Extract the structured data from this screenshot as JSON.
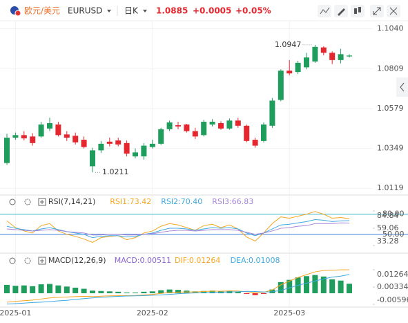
{
  "header": {
    "name": "欧元/美元",
    "symbol": "EURUSD",
    "period": "日K",
    "price": 1.0885,
    "change": "+0.0005",
    "change_pct": "+0.05%"
  },
  "chart_data": [
    {
      "type": "candlestick",
      "up_color": "#1f9d5c",
      "down_color": "#e5262e",
      "grid": true,
      "categories": [
        null,
        null,
        null,
        null,
        null,
        null,
        null,
        null,
        null,
        null,
        null,
        null,
        null,
        null,
        null,
        null,
        null,
        null,
        null,
        null,
        null,
        null,
        null,
        null,
        null,
        null,
        null,
        null,
        null,
        null,
        null,
        null,
        null,
        null,
        null,
        null,
        null,
        null,
        null,
        null,
        null
      ],
      "open": [
        1.0265,
        1.0411,
        1.0426,
        1.0418,
        1.0418,
        1.0464,
        1.0487,
        1.043,
        1.0422,
        1.0399,
        1.0246,
        1.0338,
        1.0388,
        1.0395,
        1.038,
        1.0303,
        1.0303,
        1.0357,
        1.0376,
        1.046,
        1.0483,
        1.0487,
        1.0449,
        1.0426,
        1.0487,
        1.0495,
        1.0464,
        1.051,
        1.048,
        1.0399,
        1.0392,
        1.048,
        1.0629,
        1.0798,
        1.079,
        1.0817,
        1.0851,
        1.0932,
        1.0901,
        1.0859,
        1.088
      ],
      "high": [
        1.0434,
        1.0441,
        1.0449,
        1.0437,
        1.0503,
        1.0526,
        1.0503,
        1.0449,
        1.0441,
        1.0418,
        1.0353,
        1.0392,
        1.0411,
        1.0411,
        1.0395,
        1.0349,
        1.038,
        1.0399,
        1.0468,
        1.051,
        1.0503,
        1.0491,
        1.0468,
        1.0514,
        1.0518,
        1.0506,
        1.0522,
        1.0526,
        1.0487,
        1.0411,
        1.0499,
        1.064,
        1.0805,
        1.0859,
        1.0855,
        1.0901,
        1.0947,
        1.0939,
        1.0909,
        1.0924,
        1.0893
      ],
      "low": [
        1.0254,
        1.0399,
        1.0395,
        1.0365,
        1.0411,
        1.0449,
        1.0418,
        1.0392,
        1.0372,
        1.0349,
        1.0211,
        1.0323,
        1.0361,
        1.0361,
        1.0303,
        1.0292,
        1.0284,
        1.0349,
        1.0369,
        1.0449,
        1.046,
        1.0441,
        1.0403,
        1.0418,
        1.0476,
        1.0457,
        1.0457,
        1.0468,
        1.0384,
        1.0353,
        1.0384,
        1.0468,
        1.0621,
        1.0771,
        1.0778,
        1.0805,
        1.0843,
        1.0886,
        1.0836,
        1.084,
        1.0874
      ],
      "close": [
        1.0411,
        1.0426,
        1.0407,
        1.038,
        1.0487,
        1.0495,
        1.0426,
        1.0411,
        1.0384,
        1.0357,
        1.0338,
        1.0376,
        1.0376,
        1.0372,
        1.0319,
        1.0326,
        1.0365,
        1.0376,
        1.046,
        1.0499,
        1.0476,
        1.0449,
        1.0418,
        1.0503,
        1.0503,
        1.0464,
        1.051,
        1.048,
        1.0392,
        1.0365,
        1.0487,
        1.0625,
        1.0798,
        1.0782,
        1.0843,
        1.0874,
        1.0935,
        1.0901,
        1.0859,
        1.0893,
        1.0885
      ],
      "ylim": [
        1.0104,
        1.1062
      ],
      "yticks": [
        {
          "value": 1.104,
          "label": "1.1040"
        },
        1.0809,
        1.0579,
        1.0349,
        1.0119
      ],
      "max_label": 1.0947,
      "min_label": 1.0211,
      "xticks": [
        {
          "value": 1,
          "label": "2025-01"
        },
        {
          "value": 17,
          "label": "2025-02"
        },
        {
          "value": 33,
          "label": "2025-03"
        }
      ]
    },
    {
      "type": "line",
      "title": "RSI(7,14,21)",
      "series": [
        {
          "name": "RSI1:73.42",
          "color": "#f5a623",
          "values": [
            70,
            60,
            55,
            52,
            63,
            66,
            55,
            50,
            47,
            43,
            38,
            45,
            47,
            48,
            42,
            45,
            52,
            55,
            62,
            66,
            64,
            60,
            56,
            63,
            65,
            60,
            64,
            58,
            46,
            40,
            52,
            66,
            76,
            74,
            77,
            80,
            84,
            80,
            74,
            75,
            73.42
          ]
        },
        {
          "name": "RSI2:70.40",
          "color": "#3fa9e0",
          "values": [
            62,
            59,
            57,
            55,
            58,
            60,
            57,
            54,
            52,
            50,
            45,
            47,
            48,
            48,
            46,
            47,
            50,
            52,
            56,
            59,
            59,
            58,
            56,
            58,
            60,
            59,
            60,
            58,
            52,
            48,
            52,
            58,
            64,
            65,
            67,
            69,
            72,
            71,
            69,
            70,
            70.4
          ]
        },
        {
          "name": "RSI3:66.83",
          "color": "#a585d9",
          "values": [
            58,
            57,
            56,
            55,
            56,
            57,
            56,
            54,
            53,
            52,
            49,
            49,
            50,
            50,
            49,
            49,
            50,
            51,
            53,
            55,
            56,
            56,
            55,
            56,
            57,
            57,
            57,
            56,
            53,
            50,
            52,
            55,
            59,
            60,
            62,
            63,
            66,
            66,
            66,
            67,
            66.83
          ]
        }
      ],
      "ylim": [
        33.28,
        84.84
      ],
      "yticks": [
        33.28,
        59.06,
        84.84
      ],
      "reflines": [
        {
          "value": 80,
          "label": "80.00",
          "color": "#38b6c9"
        },
        {
          "value": 50,
          "label": "50.00",
          "color": "#3a7bd5"
        }
      ]
    },
    {
      "type": "macd",
      "title": "MACD(12,26,9)",
      "up_color": "#1f9d5c",
      "down_color": "#e5262e",
      "series": [
        {
          "name": "MACD:0.00511",
          "color": "#8a63d2",
          "style": "bar",
          "values": [
            0.0045,
            0.004,
            0.0042,
            0.0038,
            0.0048,
            0.005,
            0.0042,
            0.0036,
            0.003,
            0.0024,
            0.0014,
            0.0012,
            0.001,
            0.0008,
            0.0004,
            0.0004,
            0.0008,
            0.001,
            0.0016,
            0.002,
            0.0018,
            0.0014,
            0.001,
            0.0012,
            0.0014,
            0.001,
            0.0012,
            0.0008,
            -0.0004,
            -0.001,
            -0.0004,
            0.002,
            0.006,
            0.0072,
            0.0085,
            0.0092,
            0.0098,
            0.009,
            0.0075,
            0.0068,
            0.00511
          ]
        },
        {
          "name": "DIF:0.01264",
          "color": "#f5a623",
          "style": "line",
          "values": [
            -0.0048,
            -0.0044,
            -0.004,
            -0.0037,
            -0.0031,
            -0.0025,
            -0.0022,
            -0.002,
            -0.0018,
            -0.0017,
            -0.0018,
            -0.0016,
            -0.0014,
            -0.0013,
            -0.0013,
            -0.0012,
            -0.0009,
            -0.0006,
            -0.0001,
            0.0004,
            0.0006,
            0.0007,
            0.0007,
            0.0009,
            0.0011,
            0.0011,
            0.0013,
            0.0012,
            0.0008,
            0.0004,
            0.0005,
            0.0018,
            0.0045,
            0.0065,
            0.0085,
            0.01,
            0.0115,
            0.0122,
            0.0124,
            0.0126,
            0.01264
          ]
        },
        {
          "name": "DEA:0.01008",
          "color": "#3fa9e0",
          "style": "line",
          "values": [
            -0.0058,
            -0.0056,
            -0.0053,
            -0.005,
            -0.0048,
            -0.0045,
            -0.0041,
            -0.0038,
            -0.0033,
            -0.0029,
            -0.0025,
            -0.0022,
            -0.0019,
            -0.0017,
            -0.0015,
            -0.0014,
            -0.0013,
            -0.0011,
            -0.0009,
            -0.0006,
            -0.0003,
            0.0,
            0.0002,
            0.0003,
            0.0004,
            0.0006,
            0.0007,
            0.0008,
            0.001,
            0.0009,
            0.0007,
            0.0008,
            0.0015,
            0.0029,
            0.0043,
            0.0054,
            0.0066,
            0.0077,
            0.0087,
            0.0092,
            0.01008
          ]
        }
      ],
      "ylim": [
        -0.00596,
        0.01264
      ],
      "yticks": [
        -0.00596,
        0.00334,
        0.01264
      ]
    }
  ]
}
